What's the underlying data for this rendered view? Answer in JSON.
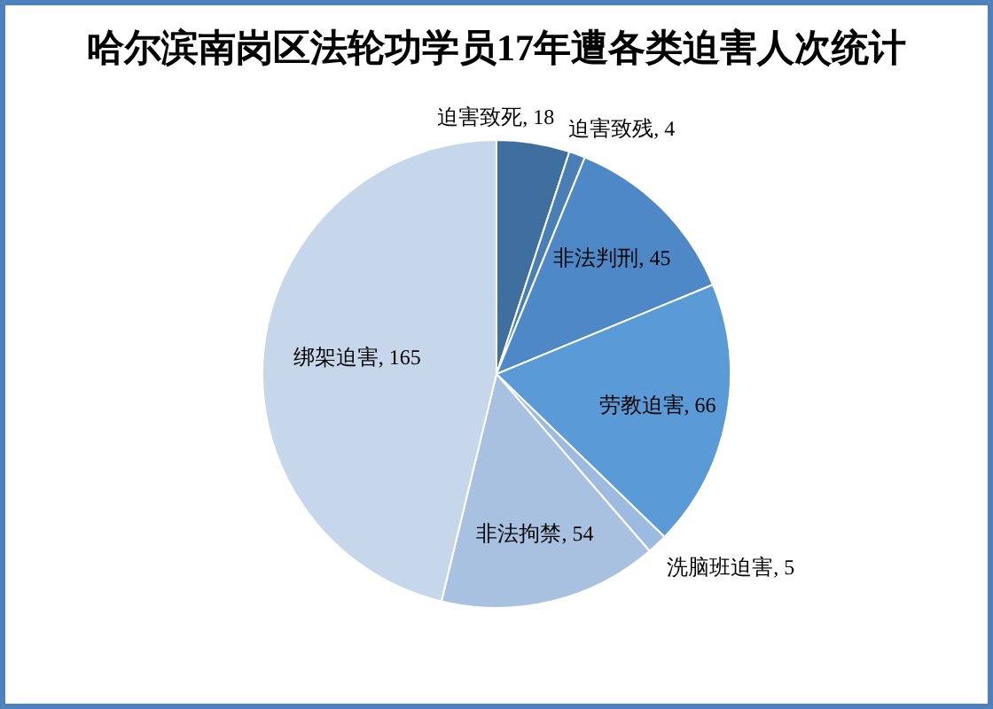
{
  "chart_data": {
    "type": "pie",
    "title": "哈尔滨南岗区法轮功学员17年遭各类迫害人次统计",
    "categories": [
      "迫害致死",
      "迫害致残",
      "非法判刑",
      "劳教迫害",
      "洗脑班迫害",
      "非法拘禁",
      "绑架迫害"
    ],
    "values": [
      18,
      4,
      45,
      66,
      5,
      54,
      165
    ],
    "value_labels": [
      ", 18",
      ", 4",
      ", 45",
      ", 66",
      ", 5",
      ", 54",
      ", 165"
    ],
    "colors": [
      "#3f6f9f",
      "#4a7fb5",
      "#4f88c6",
      "#5a9ad6",
      "#9dbbe0",
      "#a9c1e0",
      "#c6d6eb"
    ]
  }
}
